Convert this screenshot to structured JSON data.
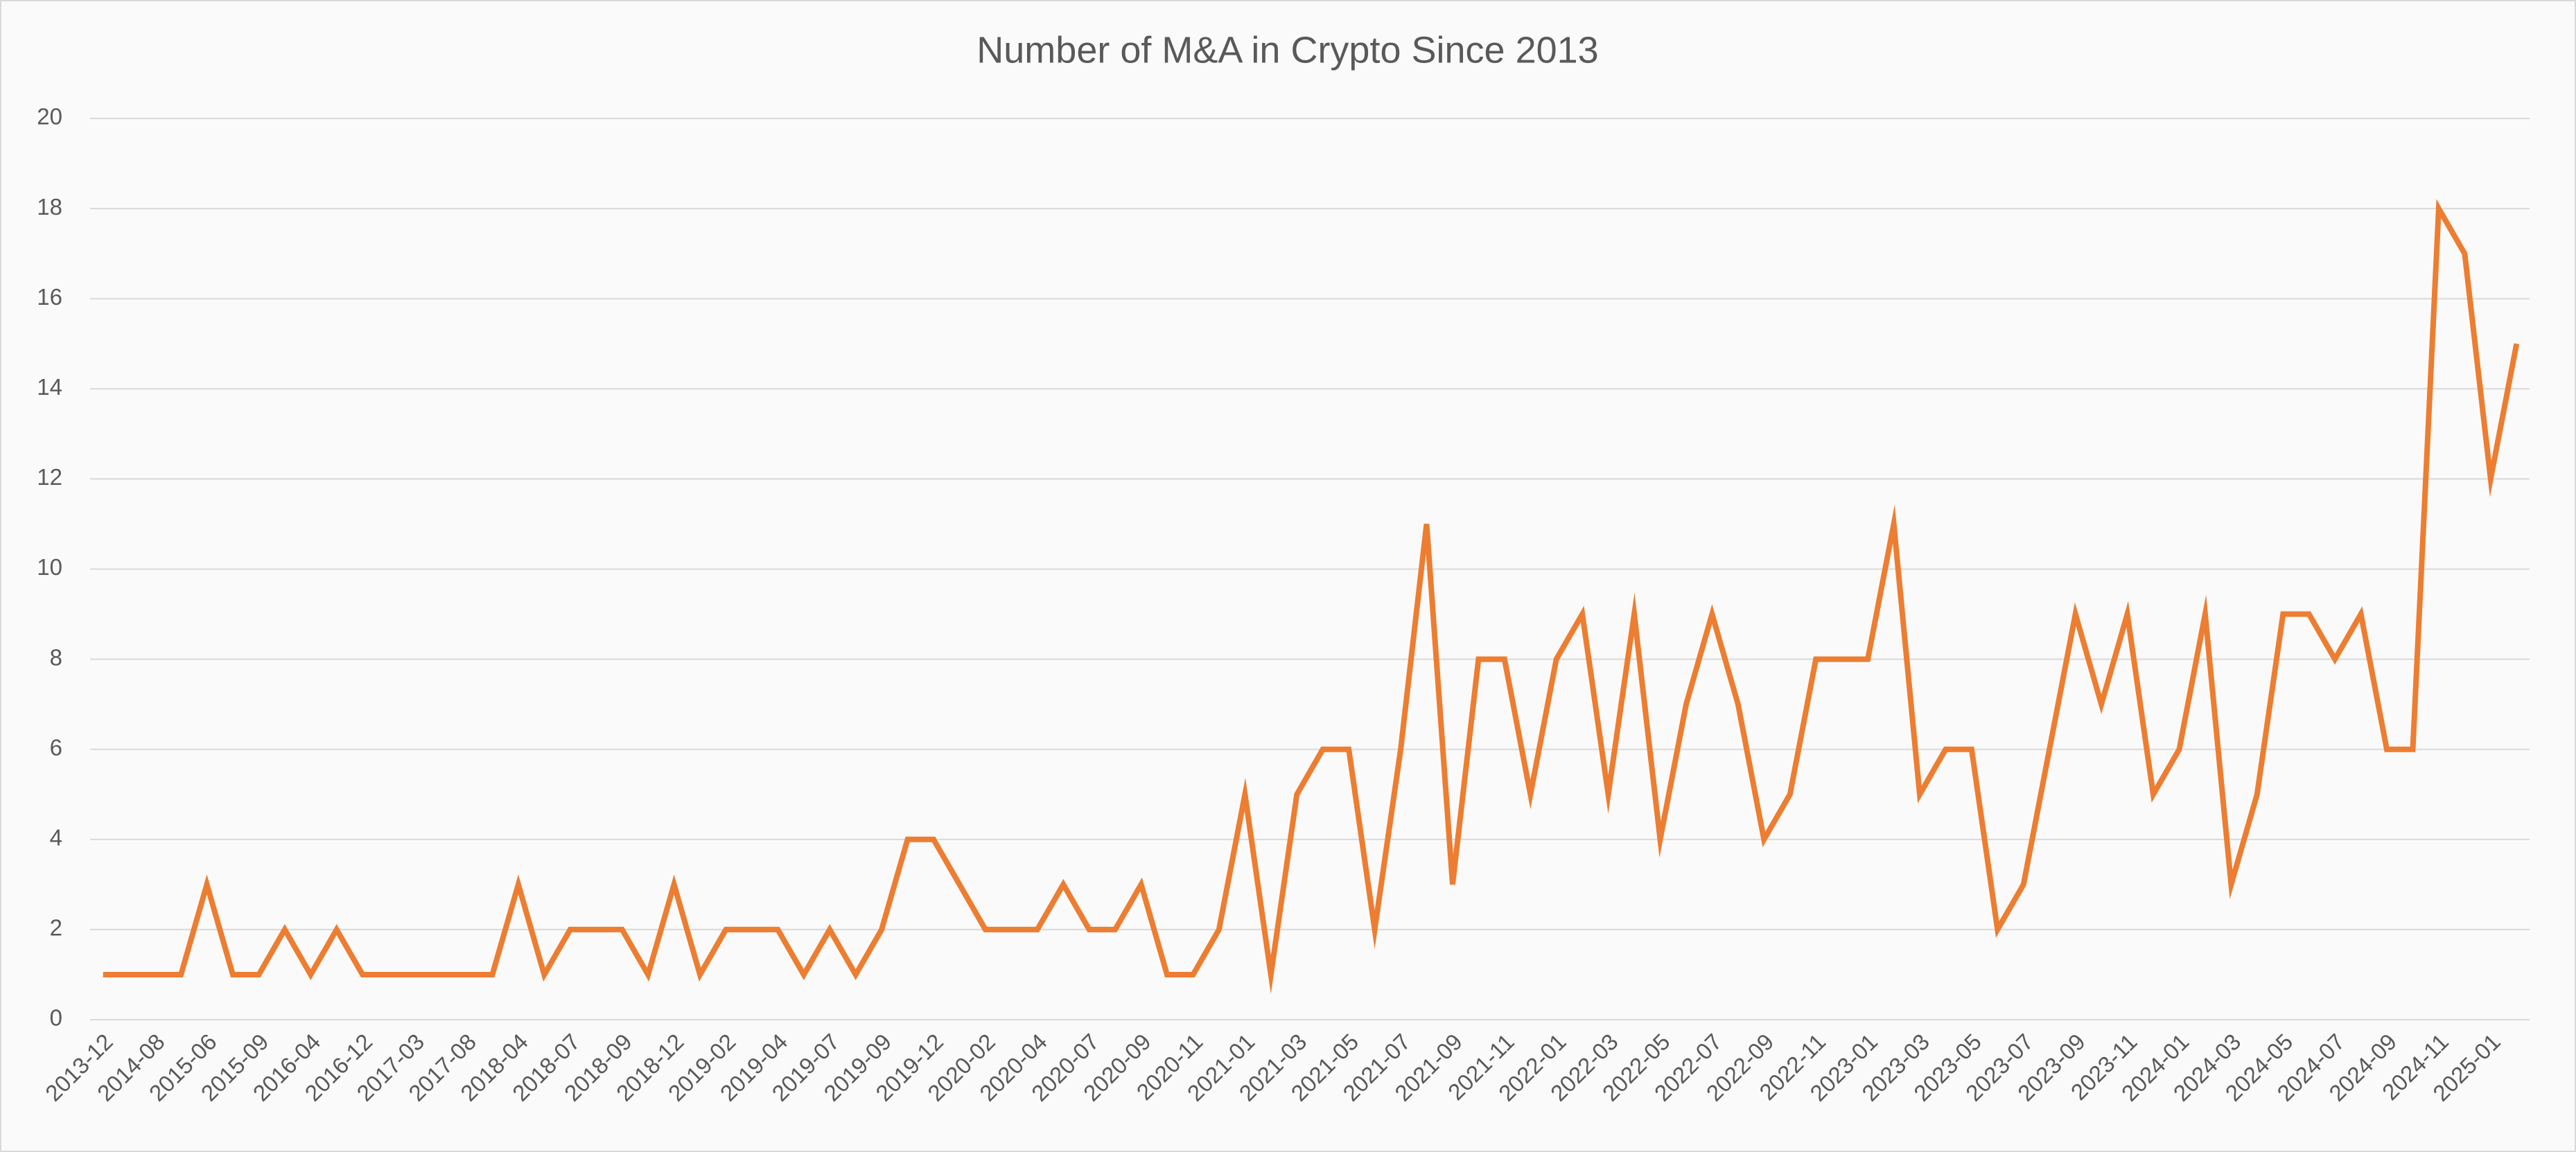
{
  "chart_data": {
    "type": "line",
    "title": "Number of M&A in Crypto Since 2013",
    "categories": [
      "2013-12",
      null,
      "2014-08",
      null,
      "2015-06",
      null,
      "2015-09",
      null,
      "2016-04",
      null,
      "2016-12",
      null,
      "2017-03",
      null,
      "2017-08",
      null,
      "2018-04",
      null,
      "2018-07",
      null,
      "2018-09",
      null,
      "2018-12",
      null,
      "2019-02",
      null,
      "2019-04",
      null,
      "2019-07",
      null,
      "2019-09",
      null,
      "2019-12",
      null,
      "2020-02",
      null,
      "2020-04",
      null,
      "2020-07",
      null,
      "2020-09",
      null,
      "2020-11",
      null,
      "2021-01",
      null,
      "2021-03",
      null,
      "2021-05",
      null,
      "2021-07",
      null,
      "2021-09",
      null,
      "2021-11",
      null,
      "2022-01",
      null,
      "2022-03",
      null,
      "2022-05",
      null,
      "2022-07",
      null,
      "2022-09",
      null,
      "2022-11",
      null,
      "2023-01",
      null,
      "2023-03",
      null,
      "2023-05",
      null,
      "2023-07",
      null,
      "2023-09",
      null,
      "2023-11",
      null,
      "2024-01",
      null,
      "2024-03",
      null,
      "2024-05",
      null,
      "2024-07",
      null,
      "2024-09",
      null,
      "2024-11",
      null,
      "2025-01",
      null
    ],
    "series": [
      {
        "name": "M&A",
        "color": "#ed7d31",
        "values": [
          1,
          1,
          1,
          1,
          3,
          1,
          1,
          2,
          1,
          2,
          1,
          1,
          1,
          1,
          1,
          1,
          3,
          1,
          2,
          2,
          2,
          1,
          3,
          1,
          2,
          2,
          2,
          1,
          2,
          1,
          2,
          4,
          4,
          3,
          2,
          2,
          2,
          3,
          2,
          2,
          3,
          1,
          1,
          2,
          5,
          1,
          5,
          6,
          6,
          2,
          6,
          11,
          3,
          8,
          8,
          5,
          8,
          9,
          5,
          9,
          4,
          7,
          9,
          7,
          4,
          5,
          8,
          8,
          8,
          11,
          5,
          6,
          6,
          2,
          3,
          6,
          9,
          7,
          9,
          5,
          6,
          9,
          3,
          5,
          9,
          9,
          8,
          9,
          6,
          6,
          18,
          17,
          12,
          15
        ]
      }
    ],
    "ylim": [
      0,
      20
    ],
    "yticks": [
      0,
      2,
      4,
      6,
      8,
      10,
      12,
      14,
      16,
      18,
      20
    ],
    "grid": true
  }
}
